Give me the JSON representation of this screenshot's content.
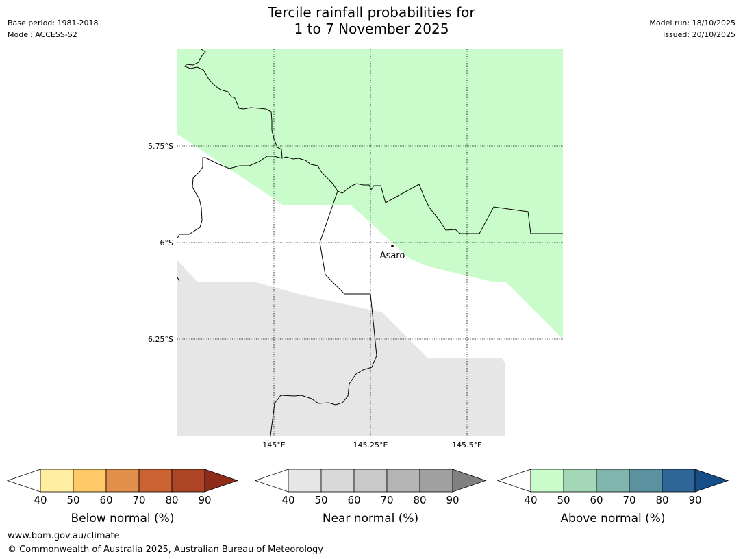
{
  "header": {
    "title_line1": "Tercile rainfall probabilities for",
    "title_line2": "1 to 7 November 2025",
    "base_period": "Base period: 1981-2018",
    "model": "Model: ACCESS-S2",
    "model_run": "Model run: 18/10/2025",
    "issued": "Issued: 20/10/2025"
  },
  "map": {
    "lat_labels": [
      "5.75°S",
      "6°S",
      "6.25°S"
    ],
    "lon_labels": [
      "145°E",
      "145.25°E",
      "145.5°E"
    ],
    "place": "Asaro",
    "colors": {
      "above_region": "#c9fcca",
      "near_region": "#e6e6e6",
      "border": "#000000"
    }
  },
  "legend": {
    "ticks": [
      "40",
      "50",
      "60",
      "70",
      "80",
      "90"
    ],
    "below": {
      "label": "Below normal (%)",
      "colors": [
        "#ffffff",
        "#ffeda0",
        "#fec966",
        "#e0904a",
        "#cb6232",
        "#ac4426",
        "#8e2c1c"
      ]
    },
    "near": {
      "label": "Near normal (%)",
      "colors": [
        "#ffffff",
        "#e6e6e6",
        "#d9d9d9",
        "#c9c9c9",
        "#b5b5b5",
        "#a0a0a0",
        "#808080"
      ]
    },
    "above": {
      "label": "Above normal (%)",
      "colors": [
        "#ffffff",
        "#c9fcca",
        "#a4d6b8",
        "#80b5ae",
        "#5c92a0",
        "#2e6697",
        "#154e88"
      ]
    }
  },
  "footer": {
    "url": "www.bom.gov.au/climate",
    "copyright": "© Commonwealth of Australia 2025, Australian Bureau of Meteorology"
  }
}
